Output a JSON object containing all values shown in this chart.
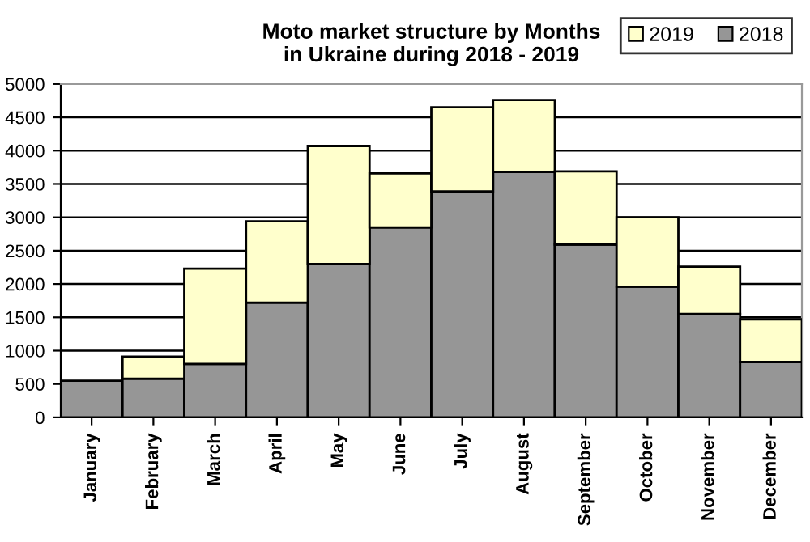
{
  "chart_data": {
    "type": "bar",
    "title": "Moto market structure by Months\nin Ukraine during 2018 - 2019",
    "stacked": true,
    "categories": [
      "January",
      "February",
      "March",
      "April",
      "May",
      "June",
      "July",
      "August",
      "September",
      "October",
      "November",
      "December"
    ],
    "series": [
      {
        "name": "2018",
        "color": "#969696",
        "values": [
          550,
          580,
          800,
          1720,
          2300,
          2850,
          3390,
          3680,
          2590,
          1960,
          1550,
          830
        ]
      },
      {
        "name": "2019",
        "color": "#ffffcc",
        "values": [
          null,
          330,
          1430,
          1220,
          1770,
          810,
          1260,
          1080,
          1100,
          1040,
          710,
          640
        ]
      }
    ],
    "ylim": [
      0,
      5000
    ],
    "yticks": [
      0,
      500,
      1000,
      1500,
      2000,
      2500,
      3000,
      3500,
      4000,
      4500,
      5000
    ],
    "grid": "y",
    "legend": "top right"
  }
}
